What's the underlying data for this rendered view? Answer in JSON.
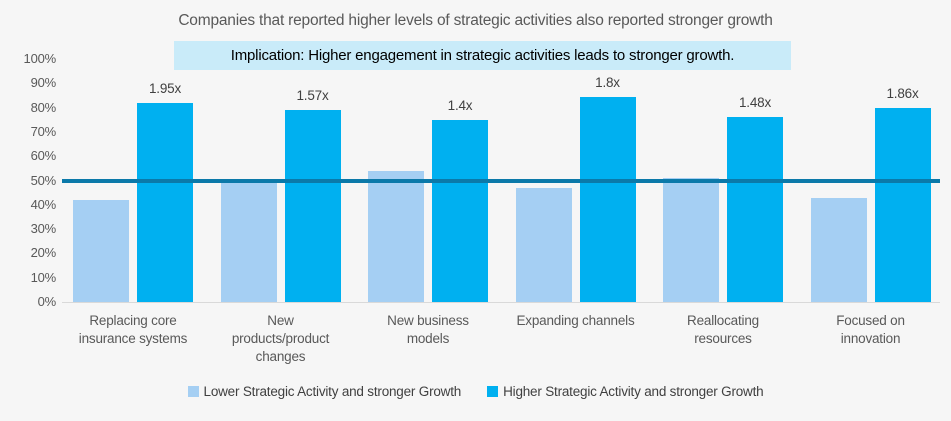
{
  "title": "Companies that reported higher levels of strategic activities also reported stronger growth",
  "implication_banner": "Implication: Higher engagement in strategic activities leads to stronger growth.",
  "colors": {
    "background": "#f6f6f6",
    "lower_series": "#a5cff3",
    "higher_series": "#00b0f0",
    "reference_line": "#0b79a9",
    "implication_bg": "#c9ebf9",
    "title_text": "#595959",
    "axis_text": "#595959",
    "data_label_text": "#404040",
    "baseline": "#d9d9d9"
  },
  "chart_data": {
    "type": "bar",
    "title": "Companies that reported higher levels of strategic activities also reported stronger growth",
    "annotation": "Implication: Higher engagement in strategic activities leads to stronger growth.",
    "categories": [
      "Replacing core insurance systems",
      "New products/product changes",
      "New business models",
      "Expanding channels",
      "Reallocating resources",
      "Focused on innovation"
    ],
    "category_lines": [
      [
        "Replacing core",
        "insurance systems"
      ],
      [
        "New",
        "products/product",
        "changes"
      ],
      [
        "New business",
        "models"
      ],
      [
        "Expanding channels"
      ],
      [
        "Reallocating",
        "resources"
      ],
      [
        "Focused on",
        "innovation"
      ]
    ],
    "series": [
      {
        "name": "Lower Strategic Activity and stronger Growth",
        "color": "#a5cff3",
        "values": [
          42,
          50,
          54,
          47,
          51,
          43
        ]
      },
      {
        "name": "Higher Strategic Activity and stronger Growth",
        "color": "#00b0f0",
        "values": [
          82,
          79,
          75,
          84.5,
          76,
          80
        ]
      }
    ],
    "bar_labels": [
      "1.95x",
      "1.57x",
      "1.4x",
      "1.8x",
      "1.48x",
      "1.86x"
    ],
    "ylabel": "",
    "xlabel": "",
    "ylim": [
      0,
      100
    ],
    "ytick_step": 10,
    "ytick_labels": [
      "0%",
      "10%",
      "20%",
      "30%",
      "40%",
      "50%",
      "60%",
      "70%",
      "80%",
      "90%",
      "100%"
    ],
    "reference_line": {
      "value": 50,
      "color": "#0b79a9"
    },
    "grid": false,
    "legend_position": "bottom"
  },
  "legend": {
    "items": [
      {
        "label": "Lower Strategic Activity and stronger Growth",
        "color": "#a5cff3"
      },
      {
        "label": "Higher Strategic Activity and stronger Growth",
        "color": "#00b0f0"
      }
    ]
  }
}
